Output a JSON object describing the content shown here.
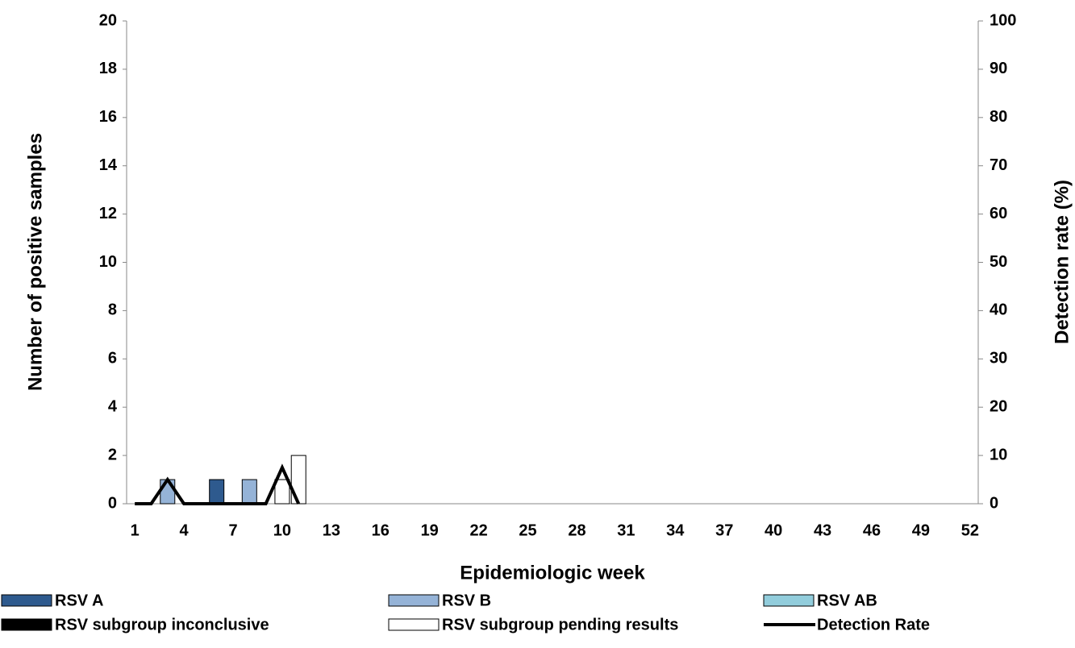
{
  "chart_data": {
    "type": "bar",
    "x_label": "Epidemiologic week",
    "y_label": "Number of positive samples",
    "y2_label": "Detection rate (%)",
    "categories": [
      1,
      null,
      null,
      4,
      null,
      null,
      7,
      null,
      null,
      10,
      null,
      null,
      13,
      null,
      null,
      16,
      null,
      null,
      19,
      null,
      null,
      22,
      null,
      null,
      25,
      null,
      null,
      28,
      null,
      null,
      31,
      null,
      null,
      34,
      null,
      null,
      37,
      null,
      null,
      40,
      null,
      null,
      43,
      null,
      null,
      46,
      null,
      null,
      49,
      null,
      null,
      52
    ],
    "series": [
      {
        "name": "RSV A",
        "color": "#2e5a8e",
        "values": [
          0,
          0,
          0,
          0,
          0,
          1,
          0,
          0,
          0,
          0,
          0,
          0,
          0,
          0,
          0,
          0,
          0,
          0,
          0,
          0,
          0,
          0,
          0,
          0,
          0,
          0,
          0,
          0,
          0,
          0,
          0,
          0,
          0,
          0,
          0,
          0,
          0,
          0,
          0,
          0,
          0,
          0,
          0,
          0,
          0,
          0,
          0,
          0,
          0,
          0,
          0,
          0
        ]
      },
      {
        "name": "RSV B",
        "color": "#95b3d7",
        "values": [
          0,
          0,
          1,
          0,
          0,
          0,
          0,
          1,
          0,
          0,
          0,
          0,
          0,
          0,
          0,
          0,
          0,
          0,
          0,
          0,
          0,
          0,
          0,
          0,
          0,
          0,
          0,
          0,
          0,
          0,
          0,
          0,
          0,
          0,
          0,
          0,
          0,
          0,
          0,
          0,
          0,
          0,
          0,
          0,
          0,
          0,
          0,
          0,
          0,
          0,
          0,
          0
        ]
      },
      {
        "name": "RSV AB",
        "color": "#92cddc",
        "values": [
          0,
          0,
          0,
          0,
          0,
          0,
          0,
          0,
          0,
          0,
          0,
          0,
          0,
          0,
          0,
          0,
          0,
          0,
          0,
          0,
          0,
          0,
          0,
          0,
          0,
          0,
          0,
          0,
          0,
          0,
          0,
          0,
          0,
          0,
          0,
          0,
          0,
          0,
          0,
          0,
          0,
          0,
          0,
          0,
          0,
          0,
          0,
          0,
          0,
          0,
          0,
          0
        ]
      },
      {
        "name": "RSV subgroup inconclusive",
        "color": "#000000",
        "values": [
          0,
          0,
          0,
          0,
          0,
          0,
          0,
          0,
          0,
          0,
          0,
          0,
          0,
          0,
          0,
          0,
          0,
          0,
          0,
          0,
          0,
          0,
          0,
          0,
          0,
          0,
          0,
          0,
          0,
          0,
          0,
          0,
          0,
          0,
          0,
          0,
          0,
          0,
          0,
          0,
          0,
          0,
          0,
          0,
          0,
          0,
          0,
          0,
          0,
          0,
          0,
          0
        ]
      },
      {
        "name": "RSV subgroup pending results",
        "color": "#ffffff",
        "values": [
          0,
          0,
          0,
          0,
          0,
          0,
          0,
          0,
          0,
          1,
          2,
          0,
          0,
          0,
          0,
          0,
          0,
          0,
          0,
          0,
          0,
          0,
          0,
          0,
          0,
          0,
          0,
          0,
          0,
          0,
          0,
          0,
          0,
          0,
          0,
          0,
          0,
          0,
          0,
          0,
          0,
          0,
          0,
          0,
          0,
          0,
          0,
          0,
          0,
          0,
          0,
          0
        ]
      },
      {
        "name": "Detection Rate",
        "color": "#000000",
        "type": "line",
        "axis": "y2",
        "values": [
          0,
          0,
          5,
          0,
          0,
          0,
          0,
          0,
          0,
          7.5,
          0,
          null,
          null,
          null,
          null,
          null,
          null,
          null,
          null,
          null,
          null,
          null,
          null,
          null,
          null,
          null,
          null,
          null,
          null,
          null,
          null,
          null,
          null,
          null,
          null,
          null,
          null,
          null,
          null,
          null,
          null,
          null,
          null,
          null,
          null,
          null,
          null,
          null,
          null,
          null,
          null,
          null
        ]
      }
    ],
    "ylim": [
      0,
      20
    ],
    "yticks": [
      0,
      2,
      4,
      6,
      8,
      10,
      12,
      14,
      16,
      18,
      20
    ],
    "y2lim": [
      0,
      100
    ],
    "y2ticks": [
      0,
      10,
      20,
      30,
      40,
      50,
      60,
      70,
      80,
      90,
      100
    ],
    "grid": false
  }
}
